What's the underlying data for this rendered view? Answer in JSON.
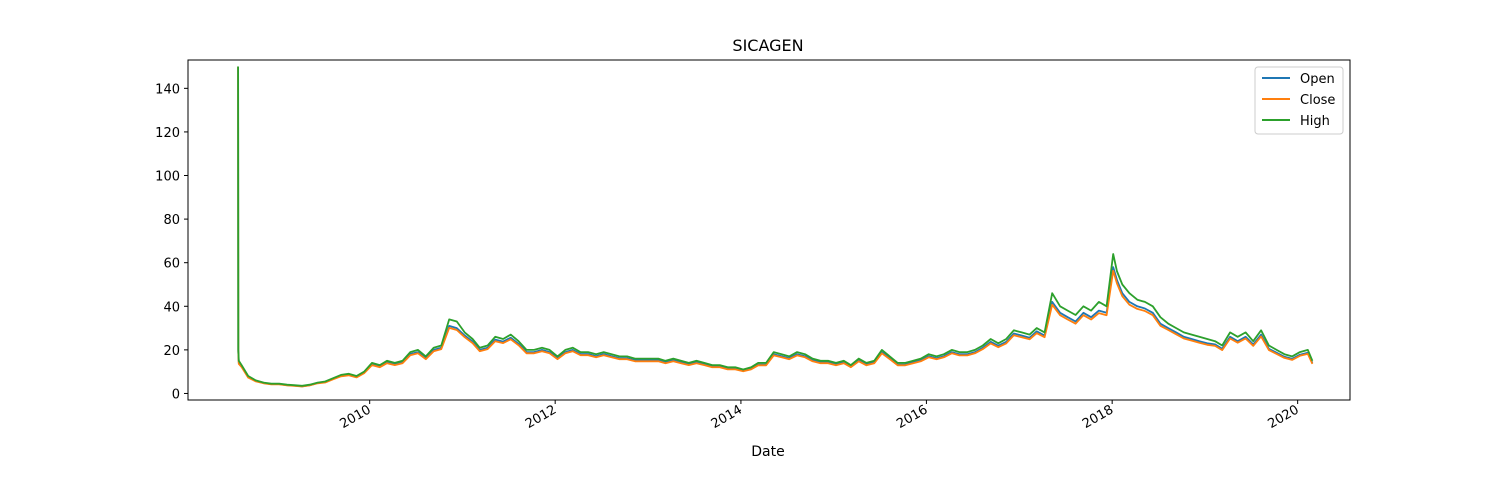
{
  "chart_data": {
    "type": "line",
    "title": "SICAGEN",
    "xlabel": "Date",
    "ylabel": "",
    "xlim": [
      "2008-01-17",
      "2020-07-25"
    ],
    "ylim": [
      -3,
      153
    ],
    "x_ticks": [
      {
        "date": "2010-01-01",
        "label": "2010"
      },
      {
        "date": "2012-01-01",
        "label": "2012"
      },
      {
        "date": "2014-01-01",
        "label": "2014"
      },
      {
        "date": "2016-01-01",
        "label": "2016"
      },
      {
        "date": "2018-01-01",
        "label": "2018"
      },
      {
        "date": "2020-01-01",
        "label": "2020"
      }
    ],
    "y_ticks": [
      0,
      20,
      40,
      60,
      80,
      100,
      120,
      140
    ],
    "grid": false,
    "legend_position": "upper right",
    "series": [
      {
        "name": "Open",
        "color": "#1f77b4"
      },
      {
        "name": "Close",
        "color": "#ff7f0e"
      },
      {
        "name": "High",
        "color": "#2ca02c"
      }
    ],
    "x": [
      "2008-08-01",
      "2008-08-02",
      "2008-08-04",
      "2008-08-15",
      "2008-09-10",
      "2008-10-10",
      "2008-11-10",
      "2008-12-10",
      "2009-01-10",
      "2009-02-10",
      "2009-03-10",
      "2009-04-10",
      "2009-05-10",
      "2009-06-10",
      "2009-07-10",
      "2009-08-10",
      "2009-09-10",
      "2009-10-10",
      "2009-11-10",
      "2009-12-10",
      "2010-01-10",
      "2010-02-10",
      "2010-03-10",
      "2010-04-10",
      "2010-05-10",
      "2010-06-10",
      "2010-07-10",
      "2010-08-10",
      "2010-09-10",
      "2010-10-10",
      "2010-11-10",
      "2010-12-10",
      "2011-01-10",
      "2011-02-10",
      "2011-03-10",
      "2011-04-10",
      "2011-05-10",
      "2011-06-10",
      "2011-07-10",
      "2011-08-10",
      "2011-09-10",
      "2011-10-10",
      "2011-11-10",
      "2011-12-10",
      "2012-01-10",
      "2012-02-10",
      "2012-03-10",
      "2012-04-10",
      "2012-05-10",
      "2012-06-10",
      "2012-07-10",
      "2012-08-10",
      "2012-09-10",
      "2012-10-10",
      "2012-11-10",
      "2012-12-10",
      "2013-01-10",
      "2013-02-10",
      "2013-03-10",
      "2013-04-10",
      "2013-05-10",
      "2013-06-10",
      "2013-07-10",
      "2013-08-10",
      "2013-09-10",
      "2013-10-10",
      "2013-11-10",
      "2013-12-10",
      "2014-01-10",
      "2014-02-10",
      "2014-03-10",
      "2014-04-10",
      "2014-05-10",
      "2014-06-10",
      "2014-07-10",
      "2014-08-10",
      "2014-09-10",
      "2014-10-10",
      "2014-11-10",
      "2014-12-10",
      "2015-01-10",
      "2015-02-10",
      "2015-03-10",
      "2015-04-10",
      "2015-05-10",
      "2015-06-10",
      "2015-07-10",
      "2015-08-10",
      "2015-09-10",
      "2015-10-10",
      "2015-11-10",
      "2015-12-10",
      "2016-01-10",
      "2016-02-10",
      "2016-03-10",
      "2016-04-10",
      "2016-05-10",
      "2016-06-10",
      "2016-07-10",
      "2016-08-10",
      "2016-09-10",
      "2016-10-10",
      "2016-11-10",
      "2016-12-10",
      "2017-01-10",
      "2017-02-10",
      "2017-03-10",
      "2017-04-10",
      "2017-05-10",
      "2017-06-10",
      "2017-07-10",
      "2017-08-10",
      "2017-09-10",
      "2017-10-10",
      "2017-11-10",
      "2017-12-10",
      "2018-01-05",
      "2018-01-20",
      "2018-02-10",
      "2018-03-10",
      "2018-04-10",
      "2018-05-10",
      "2018-06-10",
      "2018-07-10",
      "2018-08-10",
      "2018-09-10",
      "2018-10-10",
      "2018-11-10",
      "2018-12-10",
      "2019-01-10",
      "2019-02-10",
      "2019-03-10",
      "2019-04-10",
      "2019-05-10",
      "2019-06-10",
      "2019-07-10",
      "2019-08-10",
      "2019-09-10",
      "2019-10-10",
      "2019-11-10",
      "2019-12-10",
      "2020-01-10",
      "2020-02-10",
      "2020-02-28"
    ],
    "high": [
      150,
      20,
      15,
      13,
      8,
      6,
      5,
      4.5,
      4.5,
      4,
      3.8,
      3.5,
      4,
      5,
      5.5,
      7,
      8.5,
      9,
      8,
      10,
      14,
      13,
      15,
      14,
      15,
      19,
      20,
      17,
      21,
      22,
      34,
      33,
      28,
      25,
      21,
      22,
      26,
      25,
      27,
      24,
      20,
      20,
      21,
      20,
      17,
      20,
      21,
      19,
      19,
      18,
      19,
      18,
      17,
      17,
      16,
      16,
      16,
      16,
      15,
      16,
      15,
      14,
      15,
      14,
      13,
      13,
      12,
      12,
      11,
      12,
      14,
      14,
      19,
      18,
      17,
      19,
      18,
      16,
      15,
      15,
      14,
      15,
      13,
      16,
      14,
      15,
      20,
      17,
      14,
      14,
      15,
      16,
      18,
      17,
      18,
      20,
      19,
      19,
      20,
      22,
      25,
      23,
      25,
      29,
      28,
      27,
      30,
      28,
      46,
      40,
      38,
      36,
      40,
      38,
      42,
      40,
      64,
      56,
      50,
      46,
      43,
      42,
      40,
      35,
      32,
      30,
      28,
      27,
      26,
      25,
      24,
      22,
      28,
      26,
      28,
      24,
      29,
      22,
      20,
      18,
      17,
      19,
      20,
      15
    ],
    "open": [
      150,
      19,
      14,
      12.5,
      7.5,
      5.7,
      4.8,
      4.3,
      4.3,
      3.8,
      3.6,
      3.3,
      3.8,
      4.8,
      5.2,
      6.7,
      8.1,
      8.6,
      7.6,
      9.6,
      13.4,
      12.4,
      14.3,
      13.4,
      14.3,
      18.1,
      19,
      16.2,
      20,
      21,
      31,
      30,
      26.6,
      23.8,
      20,
      21,
      24.7,
      23.8,
      25.6,
      22.8,
      19,
      19,
      20,
      19,
      16.2,
      19,
      20,
      18.1,
      18.1,
      17.1,
      18.1,
      17.1,
      16.2,
      16.2,
      15.2,
      15.2,
      15.2,
      15.2,
      14.3,
      15.2,
      14.3,
      13.4,
      14.3,
      13.4,
      12.4,
      12.4,
      11.4,
      11.4,
      10.5,
      11.4,
      13.3,
      13.3,
      18,
      17.1,
      16.2,
      18,
      17.1,
      15.2,
      14.3,
      14.3,
      13.3,
      14.3,
      12.4,
      15.2,
      13.3,
      14.3,
      19,
      16.2,
      13.3,
      13.3,
      14.3,
      15.2,
      17.1,
      16.2,
      17.1,
      19,
      18,
      18,
      19,
      21,
      23.7,
      21.9,
      23.7,
      27.5,
      26.6,
      25.6,
      28.5,
      26.6,
      42,
      37,
      35,
      33,
      37,
      35,
      38,
      37,
      58,
      52,
      46,
      42,
      40,
      39,
      37,
      32,
      30,
      28,
      26,
      25,
      24,
      23,
      22.5,
      20.5,
      26,
      24,
      26,
      22.5,
      27,
      20.5,
      18.7,
      16.8,
      15.9,
      17.8,
      18.7,
      14
    ]
  }
}
